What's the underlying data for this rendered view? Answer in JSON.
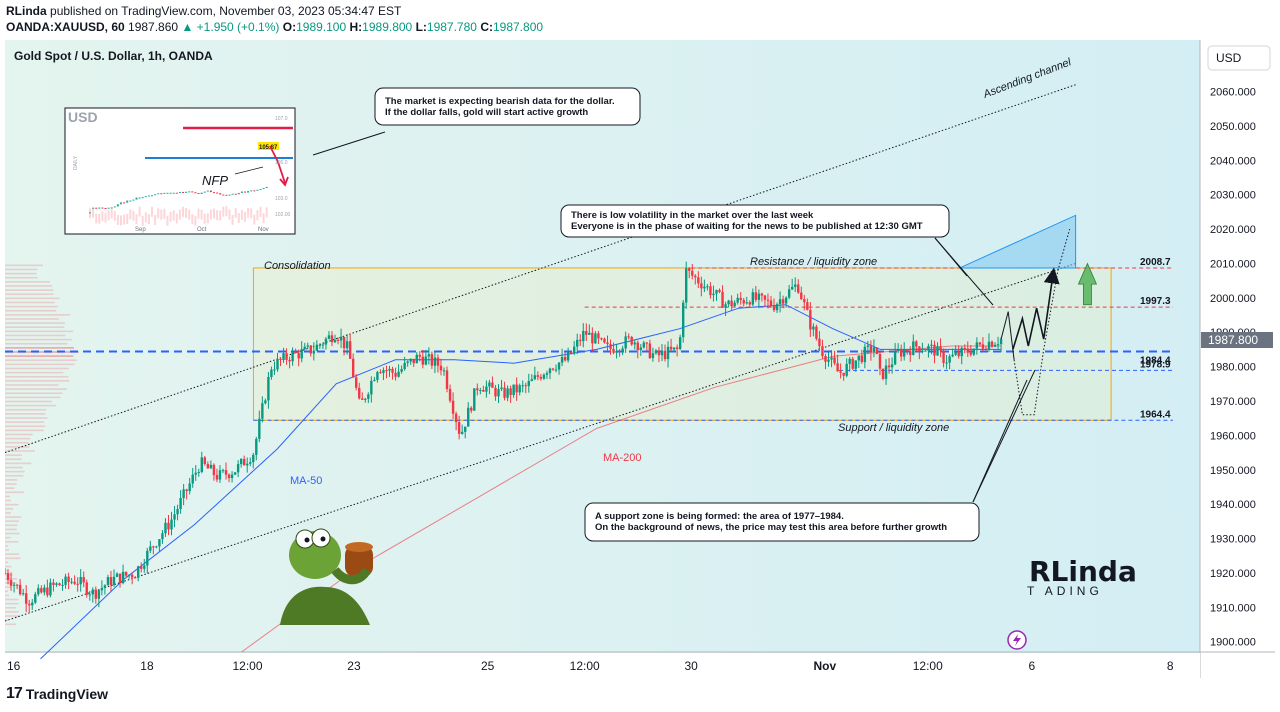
{
  "header": {
    "author": "RLinda",
    "published_text": "published on TradingView.com, November 03, 2023 05:34:47 EST",
    "symbol_line": {
      "symbol": "OANDA:XAUUSD, 60",
      "last": "1987.860",
      "change": "+1.950 (+0.1%)",
      "open_label": "O:",
      "open": "1989.100",
      "high_label": "H:",
      "high": "1989.800",
      "low_label": "L:",
      "low": "1987.780",
      "close_label": "C:",
      "close": "1987.800"
    }
  },
  "footer": {
    "brand": "TradingView"
  },
  "chart_data": {
    "type": "candlestick",
    "title": "Gold Spot / U.S. Dollar, 1h, OANDA",
    "currency": "USD",
    "last_price_label": "1987.800",
    "ylim": [
      1897,
      2075
    ],
    "y_ticks": [
      1900,
      1910,
      1920,
      1930,
      1940,
      1950,
      1960,
      1970,
      1980,
      1990,
      2000,
      2010,
      2020,
      2030,
      2040,
      2050,
      2060
    ],
    "y_tick_labels": [
      "1900.000",
      "1910.000",
      "1920.000",
      "1930.000",
      "1940.000",
      "1950.000",
      "1960.000",
      "1970.000",
      "1980.000",
      "1990.000",
      "2000.000",
      "2010.000",
      "2020.000",
      "2030.000",
      "2040.000",
      "2050.000",
      "2060.000"
    ],
    "x_ticks": [
      {
        "label": "16",
        "pos": 0.0
      },
      {
        "label": "18",
        "pos": 0.12
      },
      {
        "label": "12:00",
        "pos": 0.205
      },
      {
        "label": "23",
        "pos": 0.295
      },
      {
        "label": "25",
        "pos": 0.408
      },
      {
        "label": "12:00",
        "pos": 0.49
      },
      {
        "label": "30",
        "pos": 0.58
      },
      {
        "label": "Nov",
        "pos": 0.693
      },
      {
        "label": "12:00",
        "pos": 0.78
      },
      {
        "label": "6",
        "pos": 0.868
      },
      {
        "label": "8",
        "pos": 0.985
      }
    ],
    "price_path": [
      [
        0.0,
        1920
      ],
      [
        0.02,
        1912
      ],
      [
        0.04,
        1916
      ],
      [
        0.06,
        1918
      ],
      [
        0.075,
        1914
      ],
      [
        0.09,
        1918
      ],
      [
        0.11,
        1920
      ],
      [
        0.125,
        1928
      ],
      [
        0.14,
        1935
      ],
      [
        0.155,
        1945
      ],
      [
        0.165,
        1952
      ],
      [
        0.18,
        1948
      ],
      [
        0.195,
        1950
      ],
      [
        0.21,
        1955
      ],
      [
        0.225,
        1980
      ],
      [
        0.24,
        1983
      ],
      [
        0.26,
        1985
      ],
      [
        0.28,
        1990
      ],
      [
        0.29,
        1985
      ],
      [
        0.3,
        1968
      ],
      [
        0.315,
        1980
      ],
      [
        0.33,
        1978
      ],
      [
        0.35,
        1983
      ],
      [
        0.37,
        1980
      ],
      [
        0.385,
        1960
      ],
      [
        0.4,
        1975
      ],
      [
        0.42,
        1972
      ],
      [
        0.44,
        1974
      ],
      [
        0.46,
        1980
      ],
      [
        0.475,
        1982
      ],
      [
        0.49,
        1990
      ],
      [
        0.51,
        1985
      ],
      [
        0.53,
        1988
      ],
      [
        0.55,
        1983
      ],
      [
        0.57,
        1985
      ],
      [
        0.575,
        2008
      ],
      [
        0.59,
        2004
      ],
      [
        0.61,
        1998
      ],
      [
        0.63,
        2000
      ],
      [
        0.65,
        1998
      ],
      [
        0.67,
        2004
      ],
      [
        0.68,
        1993
      ],
      [
        0.69,
        1985
      ],
      [
        0.705,
        1978
      ],
      [
        0.72,
        1982
      ],
      [
        0.735,
        1986
      ],
      [
        0.74,
        1977
      ],
      [
        0.755,
        1984
      ],
      [
        0.77,
        1986
      ],
      [
        0.785,
        1985
      ],
      [
        0.795,
        1982
      ],
      [
        0.81,
        1984
      ],
      [
        0.83,
        1987
      ],
      [
        0.842,
        1988
      ]
    ],
    "ma50": [
      [
        0.03,
        1895
      ],
      [
        0.1,
        1918
      ],
      [
        0.16,
        1934
      ],
      [
        0.23,
        1956
      ],
      [
        0.28,
        1975
      ],
      [
        0.33,
        1982
      ],
      [
        0.38,
        1982
      ],
      [
        0.43,
        1981
      ],
      [
        0.5,
        1985
      ],
      [
        0.57,
        1991
      ],
      [
        0.62,
        1997
      ],
      [
        0.66,
        1998
      ],
      [
        0.7,
        1991
      ],
      [
        0.74,
        1985
      ],
      [
        0.79,
        1985
      ],
      [
        0.842,
        1985
      ]
    ],
    "ma200": [
      [
        0.2,
        1897
      ],
      [
        0.3,
        1922
      ],
      [
        0.4,
        1942
      ],
      [
        0.5,
        1962
      ],
      [
        0.6,
        1974
      ],
      [
        0.7,
        1983
      ],
      [
        0.8,
        1986
      ],
      [
        0.842,
        1986
      ]
    ],
    "levels": [
      {
        "value": 2008.7,
        "label": "2008.7"
      },
      {
        "value": 1997.3,
        "label": "1997.3"
      },
      {
        "value": 1984.4,
        "label": "1984.4"
      },
      {
        "value": 1978.9,
        "label": "1978.9"
      },
      {
        "value": 1964.4,
        "label": "1964.4"
      }
    ],
    "consolidation_box": {
      "x0": 0.21,
      "x1": 0.935,
      "y_top": 2008.7,
      "y_bottom": 1964.4
    },
    "channel": {
      "upper": [
        [
          0.0,
          1955
        ],
        [
          0.905,
          2062
        ]
      ],
      "lower": [
        [
          0.0,
          1906
        ],
        [
          0.905,
          2010
        ]
      ]
    },
    "projection_box": {
      "x0": 0.807,
      "x1": 0.905,
      "y_top": 2024,
      "y_bottom": 2008.7
    },
    "annotations": {
      "consolidation": "Consolidation",
      "resistance": "Resistance / liquidity zone",
      "support": "Support / liquidity zone",
      "ascending": "Ascending channel",
      "ma50": "MA-50",
      "ma200": "MA-200",
      "callout_top": [
        "The market is expecting bearish data for the dollar.",
        "If the dollar falls, gold will start active growth"
      ],
      "callout_mid": [
        "There is low volatility in the market over the last week",
        "Everyone is in the phase of waiting for the news to be published at 12:30 GMT"
      ],
      "callout_low": [
        "A support zone is being formed: the area of 1977–1984.",
        "On the background of news, the price may test this area before further growth"
      ]
    },
    "inset": {
      "label": "USD",
      "price_label": "105.87",
      "ticks": [
        "107.0",
        "105.0",
        "103.0",
        "102.00"
      ],
      "x_ticks": [
        "Sep",
        "Oct",
        "Nov"
      ],
      "side_label": "DAILY",
      "note": "NFP"
    },
    "logo": {
      "line1": "RLinda",
      "line2": "T ADING"
    }
  },
  "colors": {
    "up": "#089981",
    "down": "#f23645",
    "ma50": "#2962ff",
    "ma200": "#f23645",
    "box": "#f7a600",
    "channel": "#131722"
  }
}
